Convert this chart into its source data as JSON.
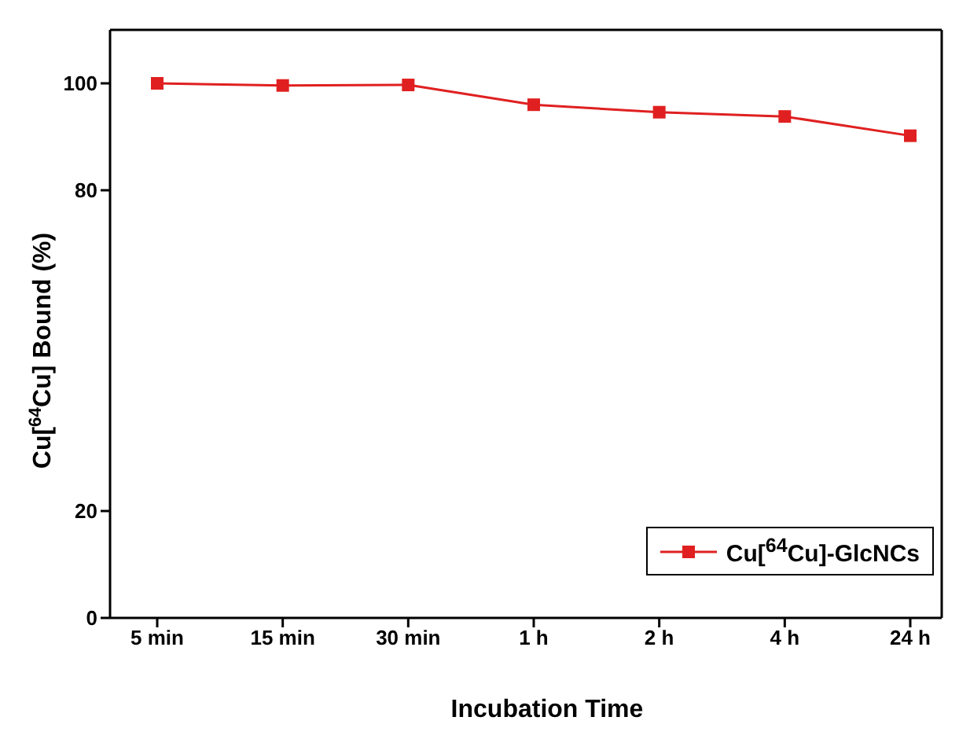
{
  "chart_data": {
    "type": "line",
    "xlabel": "Incubation Time",
    "ylabel": "Cu[$^{64}$Cu] Bound (%)",
    "categories": [
      "5 min",
      "15 min",
      "30 min",
      "1 h",
      "2 h",
      "4 h",
      "24 h"
    ],
    "series": [
      {
        "name": "Cu[$^{64}$Cu]-GlcNCs",
        "color": "#e02020",
        "values": [
          100,
          99.6,
          99.7,
          96,
          94.6,
          93.8,
          90.2
        ]
      }
    ],
    "ylim": [
      0,
      110
    ],
    "yticks": [
      0,
      20,
      80,
      100
    ],
    "grid": false,
    "legend": "bottom right",
    "marker": "square",
    "line_style": "solid"
  }
}
